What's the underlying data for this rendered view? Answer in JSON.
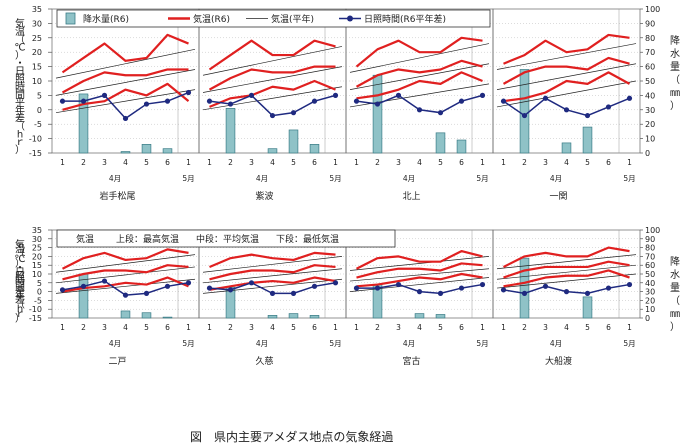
{
  "caption": "図　県内主要アメダス地点の気象経過",
  "left_axis_label": [
    "気",
    "温",
    "（",
    "℃",
    "）",
    "・",
    "日",
    "照",
    "時",
    "間",
    "平",
    "年",
    "差",
    "（",
    "h",
    "ｒ",
    "）"
  ],
  "right_axis_label": [
    "降",
    "水",
    "量",
    "（",
    "㎜",
    "）"
  ],
  "month_labels": [
    "4月",
    "5月"
  ],
  "period_ticks": [
    "1",
    "2",
    "3",
    "4",
    "5",
    "6",
    "1"
  ],
  "left_axis": {
    "min": -15,
    "max": 35,
    "ticks": [
      "35",
      "30",
      "25",
      "20",
      "15",
      "10",
      "5",
      "0",
      "-5",
      "-10",
      "-15"
    ]
  },
  "right_axis": {
    "min": 0,
    "max": 100,
    "ticks": [
      "100",
      "90",
      "80",
      "70",
      "60",
      "50",
      "40",
      "30",
      "20",
      "10",
      "0"
    ]
  },
  "legend": {
    "precip": "降水量(R6)",
    "temp": "気温(R6)",
    "normal": "気温(平年)",
    "sunshine": "日照時間(R6平年差)"
  },
  "note": {
    "title": "気温",
    "upper": "上段：最高気温",
    "middle": "中段：平均気温",
    "lower": "下段：最低気温"
  },
  "colors": {
    "temp": "#e02020",
    "normal": "#222222",
    "sunshine": "#1f2a80",
    "bar_fill": "#8fc2c7",
    "bar_stroke": "#3a7c86",
    "grid": "#aaaaaa"
  },
  "chart_data": {
    "type": "bar",
    "x_categories": [
      "4月1半旬",
      "4月2半旬",
      "4月3半旬",
      "4月4半旬",
      "4月5半旬",
      "4月6半旬",
      "5月1半旬"
    ],
    "stations": [
      {
        "name": "岩手松尾",
        "precip": [
          0,
          41,
          0,
          1,
          6,
          3,
          0
        ],
        "tmax": [
          13,
          18,
          23,
          17,
          18,
          26,
          23
        ],
        "tmean": [
          6,
          10,
          13,
          12,
          12,
          14,
          14
        ],
        "tmin": [
          0,
          2,
          3,
          7,
          5,
          9,
          3
        ],
        "sun": [
          3,
          3,
          5,
          -3,
          2,
          3,
          6
        ],
        "nmax": [
          11,
          21
        ],
        "nmean": [
          5,
          14
        ],
        "nmin": [
          -1,
          7
        ]
      },
      {
        "name": "紫波",
        "precip": [
          0,
          31,
          0,
          3,
          16,
          6,
          0
        ],
        "tmax": [
          14,
          19,
          24,
          19,
          19,
          24,
          22
        ],
        "tmean": [
          7,
          11,
          14,
          13,
          13,
          15,
          15
        ],
        "tmin": [
          1,
          4,
          5,
          8,
          7,
          10,
          7
        ],
        "sun": [
          3,
          2,
          5,
          -2,
          -1,
          3,
          5
        ],
        "nmax": [
          12,
          22
        ],
        "nmean": [
          6,
          15
        ],
        "nmin": [
          0,
          8
        ]
      },
      {
        "name": "北上",
        "precip": [
          0,
          54,
          0,
          0,
          14,
          9,
          0
        ],
        "tmax": [
          15,
          21,
          24,
          20,
          20,
          25,
          24
        ],
        "tmean": [
          8,
          12,
          14,
          13,
          14,
          17,
          15
        ],
        "tmin": [
          4,
          5,
          7,
          10,
          9,
          13,
          10
        ],
        "sun": [
          3,
          2,
          5,
          0,
          -1,
          3,
          5
        ],
        "nmax": [
          13,
          23
        ],
        "nmean": [
          7,
          16
        ],
        "nmin": [
          1,
          9
        ]
      },
      {
        "name": "一関",
        "precip": [
          0,
          58,
          0,
          7,
          18,
          0,
          0
        ],
        "tmax": [
          16,
          19,
          24,
          20,
          21,
          26,
          25
        ],
        "tmean": [
          9,
          13,
          15,
          15,
          14,
          18,
          16
        ],
        "tmin": [
          3,
          4,
          6,
          10,
          9,
          13,
          9
        ],
        "sun": [
          3,
          -2,
          4,
          0,
          -2,
          1,
          4
        ],
        "nmax": [
          14,
          23
        ],
        "nmean": [
          7,
          16
        ],
        "nmin": [
          1,
          10
        ]
      },
      {
        "name": "二戸",
        "precip": [
          0,
          50,
          0,
          8,
          6,
          1,
          0
        ],
        "tmax": [
          13,
          19,
          22,
          18,
          19,
          24,
          22
        ],
        "tmean": [
          7,
          10,
          12,
          12,
          11,
          15,
          14
        ],
        "tmin": [
          0,
          2,
          3,
          5,
          4,
          8,
          3
        ],
        "sun": [
          1,
          3,
          6,
          -2,
          -1,
          3,
          5
        ],
        "nmax": [
          11,
          21
        ],
        "nmean": [
          5,
          14
        ],
        "nmin": [
          -1,
          7
        ]
      },
      {
        "name": "久慈",
        "precip": [
          0,
          35,
          0,
          3,
          5,
          3,
          0
        ],
        "tmax": [
          14,
          19,
          21,
          19,
          18,
          22,
          21
        ],
        "tmean": [
          7,
          10,
          12,
          12,
          11,
          15,
          14
        ],
        "tmin": [
          1,
          3,
          5,
          6,
          5,
          8,
          6
        ],
        "sun": [
          2,
          1,
          5,
          -1,
          -1,
          3,
          5
        ],
        "nmax": [
          11,
          20
        ],
        "nmean": [
          5,
          13
        ],
        "nmin": [
          -1,
          7
        ]
      },
      {
        "name": "宮古",
        "precip": [
          0,
          38,
          0,
          5,
          4,
          0,
          0
        ],
        "tmax": [
          13,
          19,
          20,
          17,
          17,
          23,
          20
        ],
        "tmean": [
          8,
          11,
          13,
          13,
          12,
          16,
          15
        ],
        "tmin": [
          3,
          4,
          6,
          8,
          7,
          10,
          8
        ],
        "sun": [
          2,
          2,
          4,
          0,
          -1,
          2,
          4
        ],
        "nmax": [
          12,
          20
        ],
        "nmean": [
          6,
          13
        ],
        "nmin": [
          0,
          8
        ]
      },
      {
        "name": "大船渡",
        "precip": [
          0,
          68,
          0,
          0,
          24,
          0,
          0
        ],
        "tmax": [
          14,
          20,
          22,
          20,
          20,
          25,
          23
        ],
        "tmean": [
          8,
          12,
          14,
          14,
          14,
          17,
          15
        ],
        "tmin": [
          3,
          5,
          8,
          9,
          9,
          12,
          8
        ],
        "sun": [
          1,
          -1,
          3,
          0,
          -1,
          2,
          4
        ],
        "nmax": [
          13,
          21
        ],
        "nmean": [
          7,
          15
        ],
        "nmin": [
          2,
          10
        ]
      }
    ]
  }
}
